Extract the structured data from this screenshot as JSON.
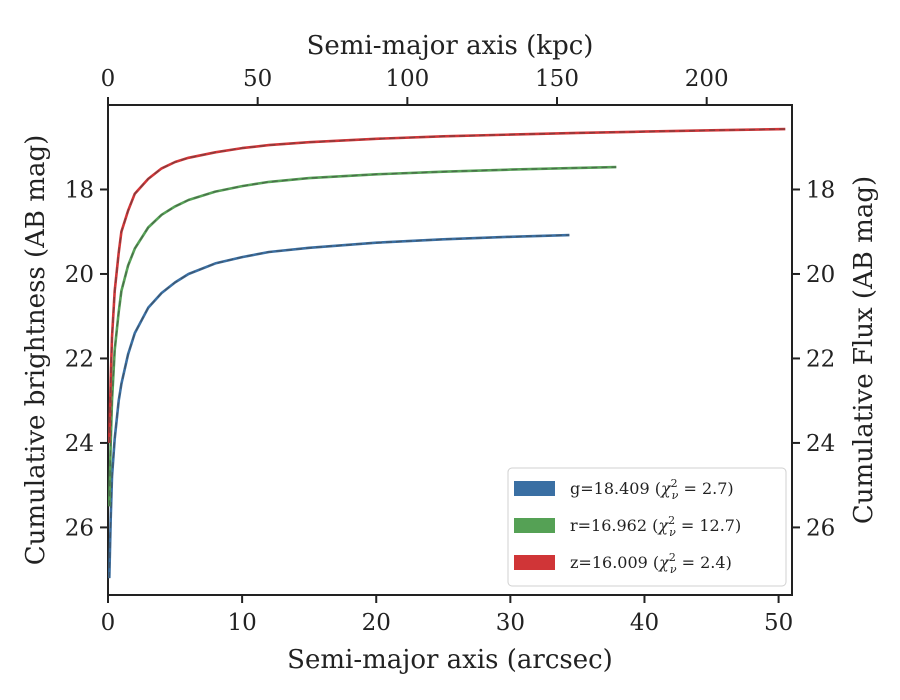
{
  "chart_data": {
    "type": "line",
    "xlabel_bottom": "Semi-major axis (arcsec)",
    "xlabel_top": "Semi-major axis (kpc)",
    "ylabel_left": "Cumulative brightness (AB mag)",
    "ylabel_right": "Cumulative Flux (AB mag)",
    "xlim": [
      0,
      51
    ],
    "xlim_top": [
      0,
      228.5
    ],
    "ylim": [
      27.6,
      16.0
    ],
    "inverted_y": true,
    "x_ticks": [
      0,
      10,
      20,
      30,
      40,
      50
    ],
    "x_ticks_top": [
      0,
      50,
      100,
      150,
      200
    ],
    "y_ticks": [
      18,
      20,
      22,
      24,
      26
    ],
    "grid": false,
    "legend_position": "lower-right",
    "series": [
      {
        "name": "g=18.409 (χ²ν = 2.7)",
        "legend_main": "g=18.409 (",
        "legend_val": " = 2.7)",
        "color": "#3a6fa3",
        "x": [
          0.1,
          0.2,
          0.3,
          0.5,
          0.8,
          1.0,
          1.5,
          2.0,
          3.0,
          4.0,
          5.0,
          6.0,
          8.0,
          10.0,
          12.0,
          15.0,
          20.0,
          25.0,
          30.0,
          34.4
        ],
        "y": [
          27.2,
          25.8,
          24.8,
          23.9,
          23.0,
          22.6,
          21.9,
          21.4,
          20.8,
          20.45,
          20.2,
          20.0,
          19.75,
          19.6,
          19.48,
          19.38,
          19.26,
          19.18,
          19.12,
          19.08
        ]
      },
      {
        "name": "r=16.962 (χ²ν = 12.7)",
        "legend_main": "r=16.962 (",
        "legend_val": " = 12.7)",
        "color": "#55a155",
        "x": [
          0.1,
          0.2,
          0.3,
          0.5,
          0.8,
          1.0,
          1.5,
          2.0,
          3.0,
          4.0,
          5.0,
          6.0,
          8.0,
          10.0,
          12.0,
          15.0,
          20.0,
          25.0,
          30.0,
          35.0,
          37.9
        ],
        "y": [
          25.5,
          24.0,
          23.0,
          21.8,
          20.9,
          20.4,
          19.8,
          19.4,
          18.9,
          18.6,
          18.4,
          18.25,
          18.05,
          17.92,
          17.82,
          17.73,
          17.64,
          17.58,
          17.53,
          17.49,
          17.47
        ]
      },
      {
        "name": "z=16.009 (χ²ν = 2.4)",
        "legend_main": "z=16.009 (",
        "legend_val": " = 2.4)",
        "color": "#d03537",
        "x": [
          0.1,
          0.2,
          0.3,
          0.5,
          0.8,
          1.0,
          1.5,
          2.0,
          3.0,
          4.0,
          5.0,
          6.0,
          8.0,
          10.0,
          12.0,
          15.0,
          20.0,
          25.0,
          30.0,
          35.0,
          40.0,
          45.0,
          50.5
        ],
        "y": [
          24.0,
          22.5,
          21.5,
          20.4,
          19.5,
          19.0,
          18.5,
          18.1,
          17.75,
          17.5,
          17.35,
          17.25,
          17.12,
          17.02,
          16.95,
          16.88,
          16.8,
          16.74,
          16.7,
          16.66,
          16.63,
          16.6,
          16.57
        ]
      }
    ]
  }
}
